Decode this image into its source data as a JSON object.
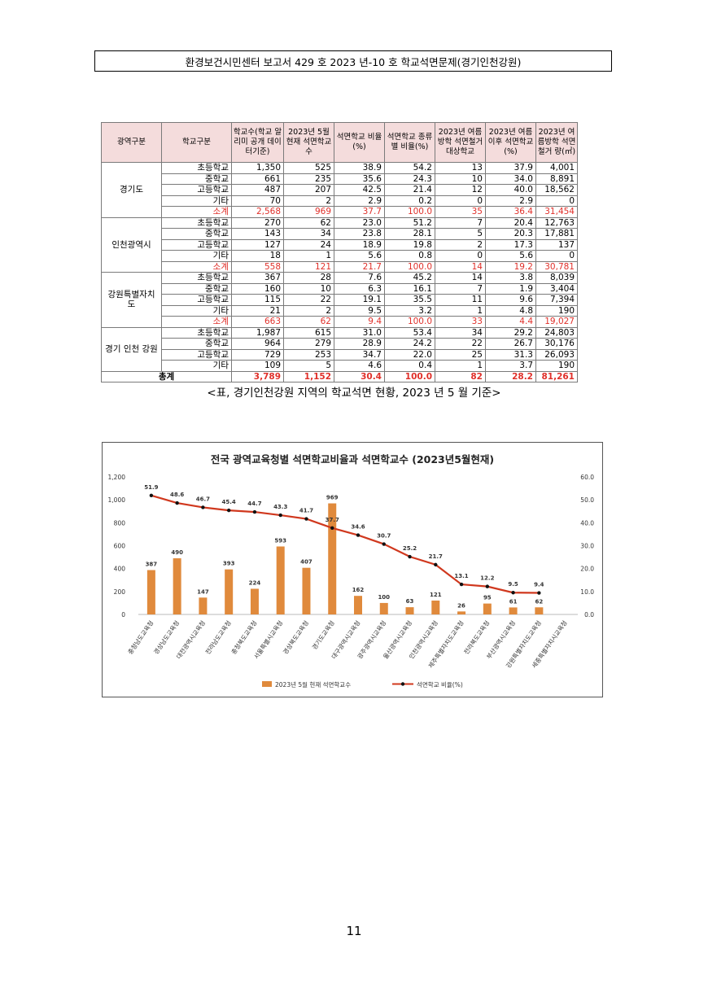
{
  "header": {
    "title": "환경보건시민센터 보고서 429 호 2023 년-10 호 학교석면문제(경기인천강원)"
  },
  "table": {
    "headers": [
      "광역구분",
      "학교구분",
      "학교수(학교 알리미 공개 데이터기준)",
      "2023년 5월 현재 석면학교수",
      "석면학교 비율(%)",
      "석면학교 종류별 비율(%)",
      "2023년 여름방학 석면철거 대상학교",
      "2023년 여름이후 석면학교(%)",
      "2023년 여름방학 석면철거 량(㎡)"
    ],
    "groups": [
      {
        "region": "경기도",
        "rows": [
          {
            "type": "초등학교",
            "vals": [
              "1,350",
              "525",
              "38.9",
              "54.2",
              "13",
              "37.9",
              "4,001"
            ]
          },
          {
            "type": "중학교",
            "vals": [
              "661",
              "235",
              "35.6",
              "24.3",
              "10",
              "34.0",
              "8,891"
            ]
          },
          {
            "type": "고등학교",
            "vals": [
              "487",
              "207",
              "42.5",
              "21.4",
              "12",
              "40.0",
              "18,562"
            ]
          },
          {
            "type": "기타",
            "vals": [
              "70",
              "2",
              "2.9",
              "0.2",
              "0",
              "2.9",
              "0"
            ]
          },
          {
            "type": "소계",
            "vals": [
              "2,568",
              "969",
              "37.7",
              "100.0",
              "35",
              "36.4",
              "31,454"
            ],
            "sub": true
          }
        ]
      },
      {
        "region": "인천광역시",
        "rows": [
          {
            "type": "초등학교",
            "vals": [
              "270",
              "62",
              "23.0",
              "51.2",
              "7",
              "20.4",
              "12,763"
            ]
          },
          {
            "type": "중학교",
            "vals": [
              "143",
              "34",
              "23.8",
              "28.1",
              "5",
              "20.3",
              "17,881"
            ]
          },
          {
            "type": "고등학교",
            "vals": [
              "127",
              "24",
              "18.9",
              "19.8",
              "2",
              "17.3",
              "137"
            ]
          },
          {
            "type": "기타",
            "vals": [
              "18",
              "1",
              "5.6",
              "0.8",
              "0",
              "5.6",
              "0"
            ]
          },
          {
            "type": "소계",
            "vals": [
              "558",
              "121",
              "21.7",
              "100.0",
              "14",
              "19.2",
              "30,781"
            ],
            "sub": true
          }
        ]
      },
      {
        "region": "강원특별자치도",
        "rows": [
          {
            "type": "초등학교",
            "vals": [
              "367",
              "28",
              "7.6",
              "45.2",
              "14",
              "3.8",
              "8,039"
            ]
          },
          {
            "type": "중학교",
            "vals": [
              "160",
              "10",
              "6.3",
              "16.1",
              "7",
              "1.9",
              "3,404"
            ]
          },
          {
            "type": "고등학교",
            "vals": [
              "115",
              "22",
              "19.1",
              "35.5",
              "11",
              "9.6",
              "7,394"
            ]
          },
          {
            "type": "기타",
            "vals": [
              "21",
              "2",
              "9.5",
              "3.2",
              "1",
              "4.8",
              "190"
            ]
          },
          {
            "type": "소계",
            "vals": [
              "663",
              "62",
              "9.4",
              "100.0",
              "33",
              "4.4",
              "19,027"
            ],
            "sub": true
          }
        ]
      },
      {
        "region": "경기 인천 강원",
        "rows": [
          {
            "type": "초등학교",
            "vals": [
              "1,987",
              "615",
              "31.0",
              "53.4",
              "34",
              "29.2",
              "24,803"
            ]
          },
          {
            "type": "중학교",
            "vals": [
              "964",
              "279",
              "28.9",
              "24.2",
              "22",
              "26.7",
              "30,176"
            ]
          },
          {
            "type": "고등학교",
            "vals": [
              "729",
              "253",
              "34.7",
              "22.0",
              "25",
              "31.3",
              "26,093"
            ]
          },
          {
            "type": "기타",
            "vals": [
              "109",
              "5",
              "4.6",
              "0.4",
              "1",
              "3.7",
              "190"
            ]
          }
        ]
      }
    ],
    "total": {
      "label": "총계",
      "vals": [
        "3,789",
        "1,152",
        "30.4",
        "100.0",
        "82",
        "28.2",
        "81,261"
      ]
    }
  },
  "caption": "<표, 경기인천강원 지역의 학교석면 현황, 2023 년 5 월 기준>",
  "chart_data": {
    "type": "bar",
    "title": "전국 광역교육청별 석면학교비율과 석면학교수 (2023년5월현재)",
    "categories": [
      "충청남도교육청",
      "경상남도교육청",
      "대전광역시교육청",
      "전라남도교육청",
      "충청북도교육청",
      "서울특별시교육청",
      "경상북도교육청",
      "경기도교육청",
      "대구광역시교육청",
      "광주광역시교육청",
      "울산광역시교육청",
      "인천광역시교육청",
      "제주특별자치도교육청",
      "전라북도교육청",
      "부산광역시교육청",
      "강원특별자치도교육청",
      "세종특별자치시교육청"
    ],
    "series": [
      {
        "name": "2023년 5월 현재 석면학교수",
        "type": "bar",
        "axis": "left",
        "color": "#e08a3c",
        "values": [
          387,
          490,
          147,
          393,
          224,
          593,
          407,
          969,
          162,
          100,
          63,
          121,
          26,
          95,
          61,
          62,
          null
        ],
        "labels": [
          "387",
          "490",
          "147",
          "393",
          "224",
          "593",
          "407",
          "969",
          "162",
          "100",
          "63",
          "121",
          "26",
          "95",
          "61",
          "62",
          ""
        ]
      },
      {
        "name": "석면학교 비율(%)",
        "type": "line",
        "axis": "right",
        "color": "#d0381e",
        "values": [
          51.9,
          48.6,
          46.7,
          45.4,
          44.7,
          43.3,
          41.7,
          37.7,
          34.6,
          30.7,
          25.2,
          21.7,
          13.1,
          12.2,
          9.5,
          9.4,
          null
        ],
        "labels": [
          "51.9",
          "48.6",
          "46.7",
          "45.4",
          "44.7",
          "43.3",
          "41.7",
          "37.7",
          "34.6",
          "30.7",
          "25.2",
          "21.7",
          "13.1",
          "12.2",
          "9.5",
          "9.4",
          ""
        ]
      }
    ],
    "ylim_left": [
      0,
      1200
    ],
    "ylim_right": [
      0,
      60
    ],
    "left_ticks": [
      "0",
      "200",
      "400",
      "600",
      "800",
      "1,000",
      "1,200"
    ],
    "right_ticks": [
      "0.0",
      "10.0",
      "20.0",
      "30.0",
      "40.0",
      "50.0",
      "60.0"
    ],
    "legend": [
      "2023년 5월 현재 석면학교수",
      "석면학교 비율(%)"
    ],
    "legend_position": "bottom"
  },
  "page_number": "11"
}
